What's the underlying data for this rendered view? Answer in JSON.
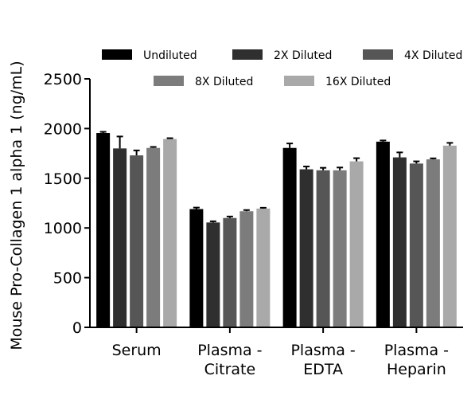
{
  "chart_data": {
    "type": "bar",
    "title": "",
    "xlabel": "",
    "ylabel": "Mouse Pro-Collagen 1 alpha 1 (ng/mL)",
    "ylim": [
      0,
      2500
    ],
    "yticks": [
      0,
      500,
      1000,
      1500,
      2000,
      2500
    ],
    "grid": false,
    "legend_position": "top",
    "categories": [
      [
        "Serum"
      ],
      [
        "Plasma -",
        "Citrate"
      ],
      [
        "Plasma -",
        "EDTA"
      ],
      [
        "Plasma -",
        "Heparin"
      ]
    ],
    "series": [
      {
        "name": "Undiluted",
        "color": "#000000",
        "values": [
          1955,
          1190,
          1805,
          1868
        ],
        "errors": [
          12,
          15,
          45,
          12
        ]
      },
      {
        "name": "2X Diluted",
        "color": "#2f2f2f",
        "values": [
          1800,
          1055,
          1590,
          1710
        ],
        "errors": [
          120,
          12,
          28,
          50
        ]
      },
      {
        "name": "4X Diluted",
        "color": "#565656",
        "values": [
          1730,
          1100,
          1580,
          1648
        ],
        "errors": [
          50,
          15,
          25,
          22
        ]
      },
      {
        "name": "8X Diluted",
        "color": "#7c7c7c",
        "values": [
          1805,
          1168,
          1580,
          1690
        ],
        "errors": [
          10,
          12,
          28,
          10
        ]
      },
      {
        "name": "16X Diluted",
        "color": "#a9a9a9",
        "values": [
          1895,
          1195,
          1670,
          1828
        ],
        "errors": [
          8,
          8,
          32,
          28
        ]
      }
    ]
  }
}
